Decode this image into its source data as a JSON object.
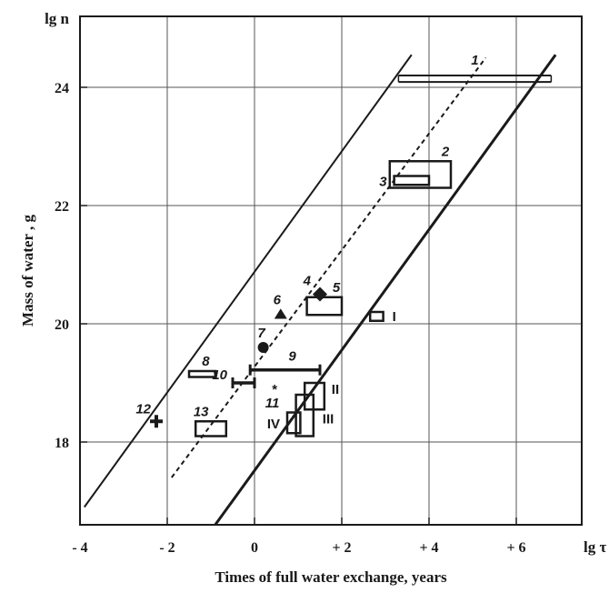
{
  "chart_data": {
    "type": "scatter",
    "title": "",
    "xlabel": "Times of full water exchange, years",
    "ylabel": "Mass of water , g",
    "x_axis_end_label": "lg τ",
    "y_axis_end_label": "lg n",
    "xlim": [
      -4,
      7.5
    ],
    "ylim": [
      16.6,
      25.2
    ],
    "x_ticks": [
      -4,
      -2,
      0,
      2,
      4,
      6
    ],
    "x_tick_labels": [
      "- 4",
      "- 2",
      "0",
      "+ 2",
      "+ 4",
      "+ 6"
    ],
    "y_ticks": [
      18,
      20,
      22,
      24
    ],
    "y_tick_labels": [
      "18",
      "20",
      "22",
      "24"
    ],
    "x_gridlines": [
      -2,
      0,
      2,
      4,
      6
    ],
    "y_gridlines": [
      18,
      20,
      22,
      24
    ],
    "grid": true,
    "lines": [
      {
        "style": "solid",
        "width": 2,
        "x": [
          -3.9,
          3.6
        ],
        "y": [
          16.9,
          24.55
        ]
      },
      {
        "style": "dashed",
        "width": 2,
        "x": [
          -1.9,
          5.3
        ],
        "y": [
          17.4,
          24.5
        ]
      },
      {
        "style": "solid",
        "width": 3,
        "x": [
          -0.9,
          6.9
        ],
        "y": [
          16.6,
          24.55
        ]
      }
    ],
    "points": [
      {
        "label": "1",
        "label_style": "arabic",
        "marker": "double-line",
        "x": [
          3.3,
          6.8
        ],
        "y": [
          24.09,
          24.2
        ]
      },
      {
        "label": "2",
        "label_style": "arabic",
        "marker": "rectangle",
        "x": [
          3.1,
          4.5
        ],
        "y": [
          22.3,
          22.75
        ]
      },
      {
        "label": "3",
        "label_style": "arabic",
        "marker": "rectangle",
        "x": [
          3.2,
          4.0
        ],
        "y": [
          22.35,
          22.5
        ]
      },
      {
        "label": "4",
        "label_style": "arabic",
        "marker": "diamond",
        "x": 1.5,
        "y": 20.5
      },
      {
        "label": "5",
        "label_style": "arabic",
        "marker": "rectangle",
        "x": [
          1.2,
          2.0
        ],
        "y": [
          20.15,
          20.45
        ]
      },
      {
        "label": "6",
        "label_style": "arabic",
        "marker": "triangle",
        "x": 0.6,
        "y": 20.15
      },
      {
        "label": "7",
        "label_style": "arabic",
        "marker": "circle",
        "x": 0.2,
        "y": 19.6
      },
      {
        "label": "8",
        "label_style": "arabic",
        "marker": "rectangle",
        "x": [
          -1.5,
          -0.9
        ],
        "y": [
          19.1,
          19.2
        ]
      },
      {
        "label": "9",
        "label_style": "arabic",
        "marker": "error-bar",
        "x": [
          -0.1,
          1.5
        ],
        "y": 19.22
      },
      {
        "label": "10",
        "label_style": "arabic",
        "marker": "error-bar",
        "x": [
          -0.5,
          0.0
        ],
        "y": 19.0
      },
      {
        "label": "11",
        "label_style": "arabic",
        "marker": "star",
        "x": 0.45,
        "y": 18.92
      },
      {
        "label": "12",
        "label_style": "arabic",
        "marker": "cross",
        "x": -2.25,
        "y": 18.35
      },
      {
        "label": "13",
        "label_style": "arabic",
        "marker": "rectangle",
        "x": [
          -1.35,
          -0.65
        ],
        "y": [
          18.1,
          18.35
        ]
      },
      {
        "label": "I",
        "label_style": "roman",
        "marker": "rectangle",
        "x": [
          2.65,
          2.95
        ],
        "y": [
          20.05,
          20.2
        ]
      },
      {
        "label": "II",
        "label_style": "roman",
        "marker": "rectangle",
        "x": [
          1.15,
          1.6
        ],
        "y": [
          18.55,
          19.0
        ]
      },
      {
        "label": "III",
        "label_style": "roman",
        "marker": "rectangle",
        "x": [
          0.95,
          1.35
        ],
        "y": [
          18.1,
          18.8
        ]
      },
      {
        "label": "IV",
        "label_style": "roman",
        "marker": "rectangle",
        "x": [
          0.75,
          1.05
        ],
        "y": [
          18.15,
          18.5
        ]
      }
    ]
  }
}
